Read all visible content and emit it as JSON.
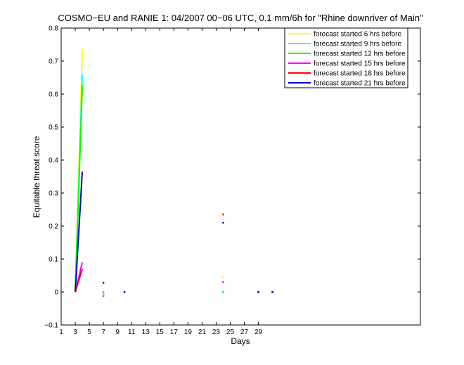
{
  "chart_data": {
    "type": "line",
    "title": "COSMO−EU and RANIE 1: 04/2007 00−06 UTC, 0.1 mm/6h for \"Rhine downriver of Main\"",
    "xlabel": "Days",
    "ylabel": "Equitable threat score",
    "xlim": [
      1,
      52
    ],
    "ylim": [
      -0.1,
      0.8
    ],
    "xticks": [
      "1",
      "3",
      "5",
      "7",
      "9",
      "11",
      "13",
      "15",
      "17",
      "19",
      "21",
      "23",
      "25",
      "27",
      "29"
    ],
    "yticks": [
      "−0.1",
      "0",
      "0.1",
      "0.2",
      "0.3",
      "0.4",
      "0.5",
      "0.6",
      "0.7",
      "0.8"
    ],
    "legend_position": "top-right",
    "series": [
      {
        "name": "forecast started 6 hrs before",
        "color": "#ffff00",
        "points": [
          [
            3,
            0.0
          ],
          [
            4,
            0.735
          ],
          [
            24,
            0.045
          ],
          [
            29,
            0.0
          ],
          [
            31,
            0.0
          ]
        ]
      },
      {
        "name": "forecast started 9 hrs before",
        "color": "#00ffff",
        "points": [
          [
            3,
            0.0
          ],
          [
            4,
            0.66
          ],
          [
            7,
            -0.005
          ],
          [
            24,
            0.0
          ],
          [
            29,
            0.0
          ],
          [
            31,
            0.0
          ]
        ]
      },
      {
        "name": "forecast started 12 hrs before",
        "color": "#00ff00",
        "points": [
          [
            3,
            0.0
          ],
          [
            4,
            0.625
          ],
          [
            7,
            0.0
          ],
          [
            24,
            0.0
          ],
          [
            29,
            0.0
          ],
          [
            31,
            0.0
          ]
        ]
      },
      {
        "name": "forecast started 15 hrs before",
        "color": "#ff00ff",
        "points": [
          [
            3,
            0.0
          ],
          [
            4,
            0.09
          ],
          [
            7,
            -0.012
          ],
          [
            24,
            0.03
          ],
          [
            29,
            0.0
          ],
          [
            31,
            0.0
          ]
        ]
      },
      {
        "name": "forecast started 18 hrs before",
        "color": "#ff0000",
        "points": [
          [
            3,
            0.0
          ],
          [
            4,
            0.07
          ],
          [
            24,
            0.235
          ],
          [
            29,
            0.0
          ],
          [
            31,
            0.0
          ]
        ]
      },
      {
        "name": "forecast started 21 hrs before",
        "color": "#0000cc",
        "points": [
          [
            3,
            0.0
          ],
          [
            4,
            0.365
          ],
          [
            7,
            0.028
          ],
          [
            10,
            0.0
          ],
          [
            24,
            0.21
          ],
          [
            29,
            0.0
          ],
          [
            31,
            0.0
          ]
        ]
      }
    ]
  }
}
